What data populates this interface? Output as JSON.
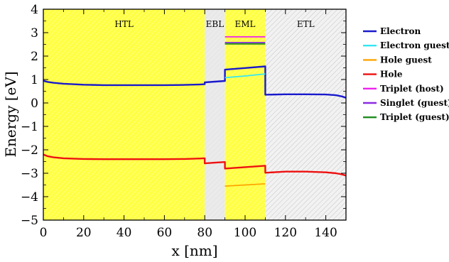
{
  "chart_data": {
    "type": "line",
    "xlabel": "x [nm]",
    "ylabel": "Energy [eV]",
    "xlim": [
      0,
      150
    ],
    "ylim": [
      -5,
      4
    ],
    "xticks": [
      0,
      20,
      40,
      60,
      80,
      100,
      120,
      140
    ],
    "yticks": [
      -5,
      -4,
      -3,
      -2,
      -1,
      0,
      1,
      2,
      3,
      4
    ],
    "ytick_labels": [
      "−5",
      "−4",
      "−3",
      "−2",
      "−1",
      "0",
      "1",
      "2",
      "3",
      "4"
    ],
    "grid": false,
    "legend_position": "right, outside plot",
    "regions": [
      {
        "label": "HTL",
        "x": [
          0,
          80
        ],
        "fill": "#ffff44",
        "hatch": "#ffffff"
      },
      {
        "label": "EBL",
        "x": [
          80,
          90
        ],
        "fill": "#e8e8e8",
        "hatch": "#ffffff"
      },
      {
        "label": "EML",
        "x": [
          90,
          110
        ],
        "fill": "#ffff44",
        "hatch": "#ffffff"
      },
      {
        "label": "ETL",
        "x": [
          110,
          150
        ],
        "fill": "#f2f2f2",
        "hatch": "#c8c8c8"
      }
    ],
    "series": [
      {
        "name": "Electron",
        "color": "#1a1acc",
        "points": [
          [
            0,
            0.95
          ],
          [
            2,
            0.9
          ],
          [
            5,
            0.86
          ],
          [
            10,
            0.82
          ],
          [
            20,
            0.78
          ],
          [
            30,
            0.76
          ],
          [
            40,
            0.76
          ],
          [
            50,
            0.76
          ],
          [
            60,
            0.76
          ],
          [
            70,
            0.77
          ],
          [
            78,
            0.79
          ],
          [
            80,
            0.8
          ],
          [
            80,
            0.88
          ],
          [
            85,
            0.91
          ],
          [
            90,
            0.94
          ],
          [
            90,
            1.42
          ],
          [
            100,
            1.49
          ],
          [
            110,
            1.56
          ],
          [
            110,
            0.35
          ],
          [
            120,
            0.37
          ],
          [
            130,
            0.37
          ],
          [
            140,
            0.36
          ],
          [
            145,
            0.33
          ],
          [
            148,
            0.28
          ],
          [
            150,
            0.22
          ]
        ]
      },
      {
        "name": "Electron guest",
        "color": "#33e6f2",
        "points": [
          [
            90,
            1.08
          ],
          [
            100,
            1.15
          ],
          [
            110,
            1.24
          ]
        ]
      },
      {
        "name": "Hole guest",
        "color": "#ffa500",
        "points": [
          [
            90,
            -3.55
          ],
          [
            100,
            -3.5
          ],
          [
            110,
            -3.45
          ]
        ]
      },
      {
        "name": "Hole",
        "color": "#ee1111",
        "points": [
          [
            0,
            -2.2
          ],
          [
            2,
            -2.27
          ],
          [
            5,
            -2.32
          ],
          [
            10,
            -2.36
          ],
          [
            20,
            -2.39
          ],
          [
            30,
            -2.4
          ],
          [
            40,
            -2.4
          ],
          [
            50,
            -2.4
          ],
          [
            60,
            -2.4
          ],
          [
            70,
            -2.39
          ],
          [
            78,
            -2.37
          ],
          [
            80,
            -2.36
          ],
          [
            80,
            -2.58
          ],
          [
            85,
            -2.55
          ],
          [
            90,
            -2.52
          ],
          [
            90,
            -2.8
          ],
          [
            100,
            -2.74
          ],
          [
            110,
            -2.68
          ],
          [
            110,
            -2.98
          ],
          [
            120,
            -2.93
          ],
          [
            130,
            -2.93
          ],
          [
            140,
            -2.96
          ],
          [
            145,
            -3.0
          ],
          [
            148,
            -3.05
          ],
          [
            150,
            -3.1
          ]
        ]
      },
      {
        "name": "Triplet (host)",
        "color": "#ee22ee",
        "points": [
          [
            90,
            2.82
          ],
          [
            110,
            2.82
          ]
        ]
      },
      {
        "name": "Singlet (guest)",
        "color": "#8a2be2",
        "points": [
          [
            90,
            2.58
          ],
          [
            110,
            2.58
          ]
        ]
      },
      {
        "name": "Triplet (guest)",
        "color": "#1e8c1e",
        "points": [
          [
            90,
            2.52
          ],
          [
            110,
            2.52
          ]
        ]
      }
    ]
  }
}
